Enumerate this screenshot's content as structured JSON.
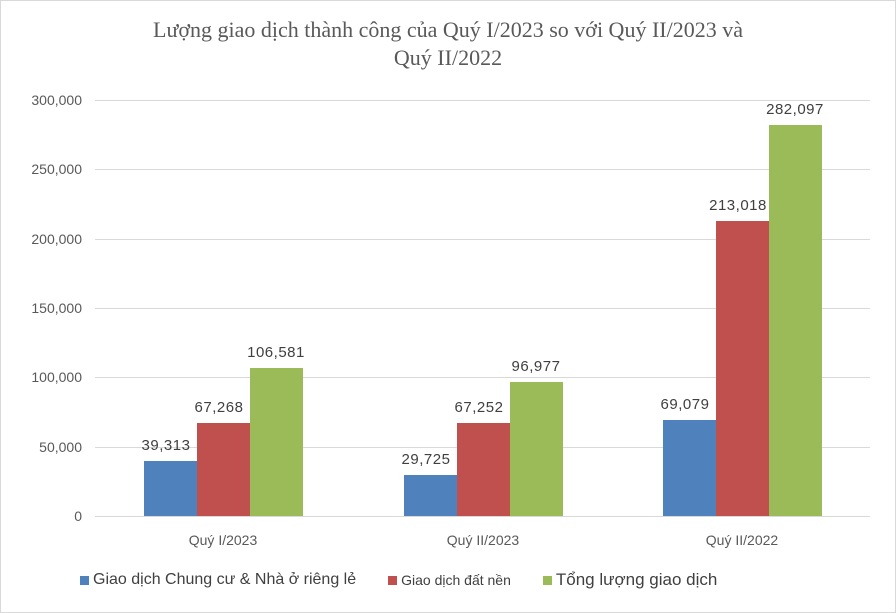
{
  "chart_data": {
    "type": "bar",
    "title": "Lượng giao dịch thành công của Quý I/2023 so với Quý II/2023 và Quý II/2022",
    "title_lines": [
      "Lượng giao dịch thành công của Quý I/2023 so với Quý II/2023 và",
      "Quý II/2022"
    ],
    "categories": [
      "Quý I/2023",
      "Quý II/2023",
      "Quý II/2022"
    ],
    "series": [
      {
        "name": "Giao dịch Chung cư & Nhà ở riêng lẻ",
        "color": "#4f81bd",
        "values": [
          39313,
          29725,
          69079
        ],
        "labels": [
          "39,313",
          "29,725",
          "69,079"
        ]
      },
      {
        "name": "Giao dịch đất nền",
        "color": "#c0504d",
        "values": [
          67268,
          67252,
          213018
        ],
        "labels": [
          "67,268",
          "67,252",
          "213,018"
        ]
      },
      {
        "name": "Tổng lượng giao dịch",
        "color": "#9bbb59",
        "values": [
          106581,
          96977,
          282097
        ],
        "labels": [
          "106,581",
          "96,977",
          "282,097"
        ]
      }
    ],
    "xlabel": "",
    "ylabel": "",
    "ylim": [
      0,
      300000
    ],
    "yticks": [
      "0",
      "50,000",
      "100,000",
      "150,000",
      "200,000",
      "250,000",
      "300,000"
    ],
    "grid": true,
    "legend_position": "bottom"
  }
}
